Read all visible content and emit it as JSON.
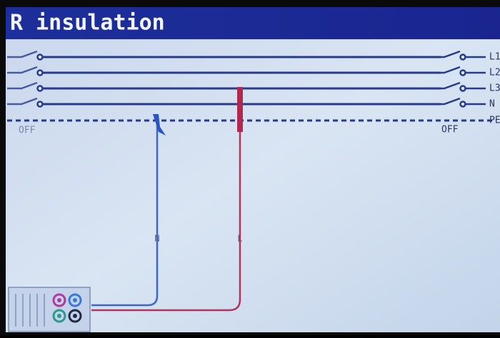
{
  "header": {
    "title": "R insulation"
  },
  "diagram": {
    "line_labels": [
      "L1",
      "L2",
      "L3",
      "N",
      "PE"
    ],
    "switch_labels": {
      "left": "OFF",
      "right": "OFF"
    },
    "probe_labels": {
      "blue": "N",
      "red": "L"
    }
  }
}
